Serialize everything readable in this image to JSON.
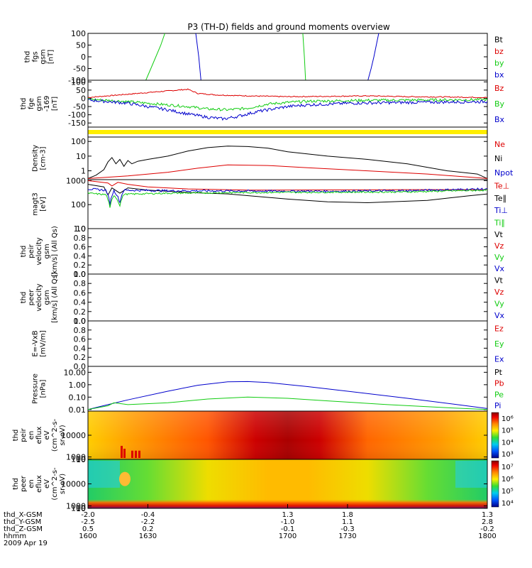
{
  "title": "P3 (TH-D) fields and ground moments overview",
  "colors": {
    "black": "#000000",
    "red": "#dd0000",
    "green": "#11cc11",
    "blue": "#0000cc",
    "yellow": "#ffee00"
  },
  "chart_data": [
    {
      "id": "fgs",
      "type": "line",
      "ylabel": [
        "thd",
        "fgs",
        "gsm",
        "[nT]"
      ],
      "yticks": [
        "100",
        "50",
        "0",
        "-50",
        "-100"
      ],
      "ylim": [
        -100,
        100
      ],
      "legend": [
        {
          "label": "Bt",
          "color": "black"
        },
        {
          "label": "bz",
          "color": "red"
        },
        {
          "label": "by",
          "color": "green"
        },
        {
          "label": "bx",
          "color": "blue"
        }
      ],
      "series": [
        {
          "name": "by",
          "color": "green",
          "segments": [
            [
              [
                1629.0,
                -100
              ],
              [
                1631.5,
                -50
              ],
              [
                1634.0,
                0
              ],
              [
                1636.5,
                50
              ],
              [
                1638.5,
                100
              ]
            ],
            [
              [
                1707.6,
                100
              ],
              [
                1708.4,
                0
              ],
              [
                1709.0,
                -100
              ]
            ]
          ]
        },
        {
          "name": "bx",
          "color": "blue",
          "segments": [
            [
              [
                1654.0,
                100
              ],
              [
                1655.5,
                0
              ],
              [
                1656.6,
                -100
              ]
            ],
            [
              [
                1740.2,
                -100
              ],
              [
                1741.8,
                -50
              ],
              [
                1743.2,
                0
              ],
              [
                1745.6,
                100
              ]
            ]
          ]
        }
      ]
    },
    {
      "id": "fge",
      "type": "line",
      "ylabel": [
        "thd",
        "fge",
        "gsm",
        "-169",
        "[nT]"
      ],
      "yticks": [
        "100",
        "50",
        "0",
        "-50",
        "-100",
        "-150"
      ],
      "ylim": [
        -175,
        110
      ],
      "legend": [
        {
          "label": "Bz",
          "color": "red"
        },
        {
          "label": "By",
          "color": "green"
        },
        {
          "label": "Bx",
          "color": "blue"
        }
      ],
      "series": [
        {
          "name": "Bz",
          "color": "red",
          "noise": 3,
          "points": [
            [
              1600,
              5
            ],
            [
              1620,
              25
            ],
            [
              1640,
              45
            ],
            [
              1650,
              55
            ],
            [
              1655,
              30
            ],
            [
              1665,
              20
            ],
            [
              1680,
              15
            ],
            [
              1700,
              10
            ],
            [
              1720,
              12
            ],
            [
              1740,
              15
            ],
            [
              1760,
              10
            ],
            [
              1780,
              8
            ],
            [
              1800,
              5
            ]
          ]
        },
        {
          "name": "By",
          "color": "green",
          "noise": 8,
          "points": [
            [
              1600,
              -5
            ],
            [
              1620,
              -20
            ],
            [
              1640,
              -40
            ],
            [
              1650,
              -50
            ],
            [
              1660,
              -65
            ],
            [
              1670,
              -70
            ],
            [
              1680,
              -60
            ],
            [
              1690,
              -35
            ],
            [
              1700,
              -25
            ],
            [
              1710,
              -18
            ],
            [
              1740,
              -12
            ],
            [
              1770,
              -10
            ],
            [
              1800,
              -8
            ]
          ]
        },
        {
          "name": "Bx",
          "color": "blue",
          "noise": 9,
          "points": [
            [
              1600,
              -10
            ],
            [
              1620,
              -30
            ],
            [
              1640,
              -70
            ],
            [
              1650,
              -95
            ],
            [
              1660,
              -115
            ],
            [
              1668,
              -125
            ],
            [
              1675,
              -110
            ],
            [
              1685,
              -80
            ],
            [
              1700,
              -50
            ],
            [
              1710,
              -40
            ],
            [
              1730,
              -30
            ],
            [
              1760,
              -25
            ],
            [
              1800,
              -20
            ]
          ]
        }
      ]
    },
    {
      "id": "bar",
      "type": "bar"
    },
    {
      "id": "density",
      "type": "line",
      "scale": "log",
      "ylabel": [
        "Density",
        "[cm-3]"
      ],
      "yticks": [
        "100",
        "10",
        "1"
      ],
      "ylim": [
        0.25,
        200
      ],
      "legend": [
        {
          "label": "Ne",
          "color": "red"
        },
        {
          "label": "Ni",
          "color": "black"
        },
        {
          "label": "Npot",
          "color": "blue"
        }
      ],
      "series": [
        {
          "name": "Ni",
          "color": "black",
          "points": [
            [
              1600,
              0.3
            ],
            [
              1604,
              0.5
            ],
            [
              1608,
              1.2
            ],
            [
              1610,
              4
            ],
            [
              1612,
              8
            ],
            [
              1614,
              3
            ],
            [
              1616,
              6
            ],
            [
              1618,
              2
            ],
            [
              1620,
              5
            ],
            [
              1622,
              3
            ],
            [
              1625,
              4.5
            ],
            [
              1630,
              6
            ],
            [
              1640,
              10
            ],
            [
              1650,
              22
            ],
            [
              1660,
              38
            ],
            [
              1670,
              48
            ],
            [
              1680,
              45
            ],
            [
              1690,
              35
            ],
            [
              1700,
              20
            ],
            [
              1720,
              10
            ],
            [
              1740,
              6
            ],
            [
              1760,
              3
            ],
            [
              1780,
              1
            ],
            [
              1795,
              0.6
            ],
            [
              1800,
              0.3
            ]
          ]
        },
        {
          "name": "Ne",
          "color": "red",
          "points": [
            [
              1600,
              0.3
            ],
            [
              1620,
              0.45
            ],
            [
              1640,
              0.8
            ],
            [
              1655,
              1.5
            ],
            [
              1670,
              2.5
            ],
            [
              1690,
              2.3
            ],
            [
              1710,
              1.6
            ],
            [
              1740,
              1.0
            ],
            [
              1770,
              0.6
            ],
            [
              1800,
              0.3
            ]
          ]
        }
      ]
    },
    {
      "id": "temp",
      "type": "line",
      "scale": "log",
      "ylabel": [
        "magt3",
        "[eV]"
      ],
      "yticks": [
        "1000",
        "100",
        "10"
      ],
      "ylim": [
        10,
        1100
      ],
      "legend": [
        {
          "label": "Te⊥",
          "color": "red"
        },
        {
          "label": "Te∥",
          "color": "black"
        },
        {
          "label": "Ti⊥",
          "color": "blue"
        },
        {
          "label": "Ti∥",
          "color": "green"
        }
      ],
      "series": [
        {
          "name": "Te⊥",
          "color": "red",
          "points": [
            [
              1600,
              1000
            ],
            [
              1610,
              800
            ],
            [
              1612,
              600
            ],
            [
              1615,
              850
            ],
            [
              1620,
              700
            ],
            [
              1630,
              550
            ],
            [
              1650,
              450
            ],
            [
              1680,
              400
            ],
            [
              1720,
              410
            ],
            [
              1760,
              420
            ],
            [
              1800,
              420
            ]
          ]
        },
        {
          "name": "Te∥",
          "color": "black",
          "points": [
            [
              1600,
              700
            ],
            [
              1608,
              550
            ],
            [
              1610,
              250
            ],
            [
              1612,
              500
            ],
            [
              1616,
              300
            ],
            [
              1620,
              500
            ],
            [
              1630,
              400
            ],
            [
              1650,
              320
            ],
            [
              1670,
              280
            ],
            [
              1700,
              170
            ],
            [
              1720,
              130
            ],
            [
              1740,
              120
            ],
            [
              1770,
              150
            ],
            [
              1790,
              230
            ],
            [
              1800,
              280
            ]
          ]
        },
        {
          "name": "Ti⊥",
          "color": "blue",
          "noise": 20,
          "points": [
            [
              1600,
              450
            ],
            [
              1609,
              400
            ],
            [
              1611,
              100
            ],
            [
              1613,
              380
            ],
            [
              1616,
              120
            ],
            [
              1618,
              400
            ],
            [
              1640,
              380
            ],
            [
              1680,
              370
            ],
            [
              1720,
              360
            ],
            [
              1760,
              380
            ],
            [
              1800,
              450
            ]
          ]
        },
        {
          "name": "Ti∥",
          "color": "green",
          "noise": 15,
          "points": [
            [
              1600,
              300
            ],
            [
              1609,
              260
            ],
            [
              1611,
              70
            ],
            [
              1613,
              250
            ],
            [
              1616,
              90
            ],
            [
              1618,
              270
            ],
            [
              1640,
              300
            ],
            [
              1680,
              320
            ],
            [
              1720,
              330
            ],
            [
              1760,
              340
            ],
            [
              1800,
              400
            ]
          ]
        }
      ]
    },
    {
      "id": "peir_vel",
      "type": "line",
      "ylabel": [
        "thd",
        "peir",
        "velocity",
        "gsm",
        "[km/s] (All Qs)"
      ],
      "yticks": [
        "1.0",
        "0.8",
        "0.6",
        "0.4",
        "0.2",
        "0.0"
      ],
      "ylim": [
        0,
        1
      ],
      "legend": [
        {
          "label": "Vt",
          "color": "black"
        },
        {
          "label": "Vz",
          "color": "red"
        },
        {
          "label": "Vy",
          "color": "green"
        },
        {
          "label": "Vx",
          "color": "blue"
        }
      ],
      "series": []
    },
    {
      "id": "peer_vel",
      "type": "line",
      "ylabel": [
        "thd",
        "peer",
        "velocity",
        "gsm",
        "[km/s] (All Qs)"
      ],
      "yticks": [
        "1.0",
        "0.8",
        "0.6",
        "0.4",
        "0.2",
        "0.0"
      ],
      "ylim": [
        0,
        1
      ],
      "legend": [
        {
          "label": "Vt",
          "color": "black"
        },
        {
          "label": "Vz",
          "color": "red"
        },
        {
          "label": "Vy",
          "color": "green"
        },
        {
          "label": "Vx",
          "color": "blue"
        }
      ],
      "series": []
    },
    {
      "id": "efield",
      "type": "line",
      "ylabel": [
        "E=-VxB",
        "[mV/m]"
      ],
      "yticks": [
        "1.0",
        "0.8",
        "0.6",
        "0.4",
        "0.2",
        "0.0"
      ],
      "ylim": [
        0,
        1
      ],
      "legend": [
        {
          "label": "Ez",
          "color": "red"
        },
        {
          "label": "Ey",
          "color": "green"
        },
        {
          "label": "Ex",
          "color": "blue"
        }
      ],
      "series": []
    },
    {
      "id": "pressure",
      "type": "line",
      "scale": "log",
      "ylabel": [
        "Pressure",
        "[nPa]"
      ],
      "yticks": [
        "10.00",
        "1.00",
        "0.10",
        "0.01"
      ],
      "ylim": [
        0.0075,
        30
      ],
      "legend": [
        {
          "label": "Pt",
          "color": "black"
        },
        {
          "label": "Pb",
          "color": "red"
        },
        {
          "label": "Pe",
          "color": "green"
        },
        {
          "label": "Pi",
          "color": "blue"
        }
      ],
      "series": [
        {
          "name": "Pi",
          "color": "blue",
          "points": [
            [
              1600,
              0.01
            ],
            [
              1610,
              0.025
            ],
            [
              1620,
              0.06
            ],
            [
              1640,
              0.3
            ],
            [
              1655,
              0.9
            ],
            [
              1670,
              1.7
            ],
            [
              1680,
              1.8
            ],
            [
              1690,
              1.5
            ],
            [
              1710,
              0.7
            ],
            [
              1730,
              0.3
            ],
            [
              1760,
              0.08
            ],
            [
              1785,
              0.025
            ],
            [
              1800,
              0.012
            ]
          ]
        },
        {
          "name": "Pe",
          "color": "green",
          "points": [
            [
              1600,
              0.01
            ],
            [
              1610,
              0.02
            ],
            [
              1613,
              0.035
            ],
            [
              1620,
              0.025
            ],
            [
              1640,
              0.035
            ],
            [
              1660,
              0.07
            ],
            [
              1680,
              0.1
            ],
            [
              1700,
              0.08
            ],
            [
              1720,
              0.05
            ],
            [
              1750,
              0.025
            ],
            [
              1780,
              0.014
            ],
            [
              1800,
              0.01
            ]
          ]
        }
      ]
    },
    {
      "id": "peir_eflux",
      "type": "heatmap",
      "ylabel": [
        "thd",
        "peir",
        "en",
        "eflux",
        "eV",
        "(cm^2-s-",
        "sr-eV)"
      ],
      "yticks": [
        "10000",
        "1000",
        "100",
        "10"
      ],
      "ylim": [
        6,
        20000
      ],
      "colorbar": [
        "10⁶",
        "10⁵",
        "10⁴",
        "10³"
      ]
    },
    {
      "id": "peer_eflux",
      "type": "heatmap",
      "ylabel": [
        "thd",
        "peer",
        "en",
        "eflux",
        "eV",
        "(cm^2-s-",
        "sr-eV)"
      ],
      "yticks": [
        "10000",
        "1000",
        "100",
        "10"
      ],
      "ylim": [
        6,
        20000
      ],
      "colorbar": [
        "10⁷",
        "10⁶",
        "10⁵",
        "10⁴"
      ]
    }
  ],
  "xaxis": {
    "xlim": [
      1600,
      1800
    ],
    "tick_values": [
      1600,
      1630,
      1700,
      1730,
      1800
    ],
    "rows": [
      {
        "label": "thd_X-GSM",
        "values": [
          "-2.0",
          "-0.4",
          "1.3",
          "1.8",
          "1.3"
        ]
      },
      {
        "label": "thd_Y-GSM",
        "values": [
          "-2.5",
          "-2.2",
          "-1.0",
          "1.1",
          "2.8"
        ]
      },
      {
        "label": "thd_Z-GSM",
        "values": [
          "0.5",
          "0.2",
          "-0.1",
          "-0.3",
          "-0.2"
        ]
      },
      {
        "label": "hhmm",
        "values": [
          "1600",
          "1630",
          "1700",
          "1730",
          "1800"
        ]
      }
    ],
    "date": "2009 Apr 19"
  }
}
